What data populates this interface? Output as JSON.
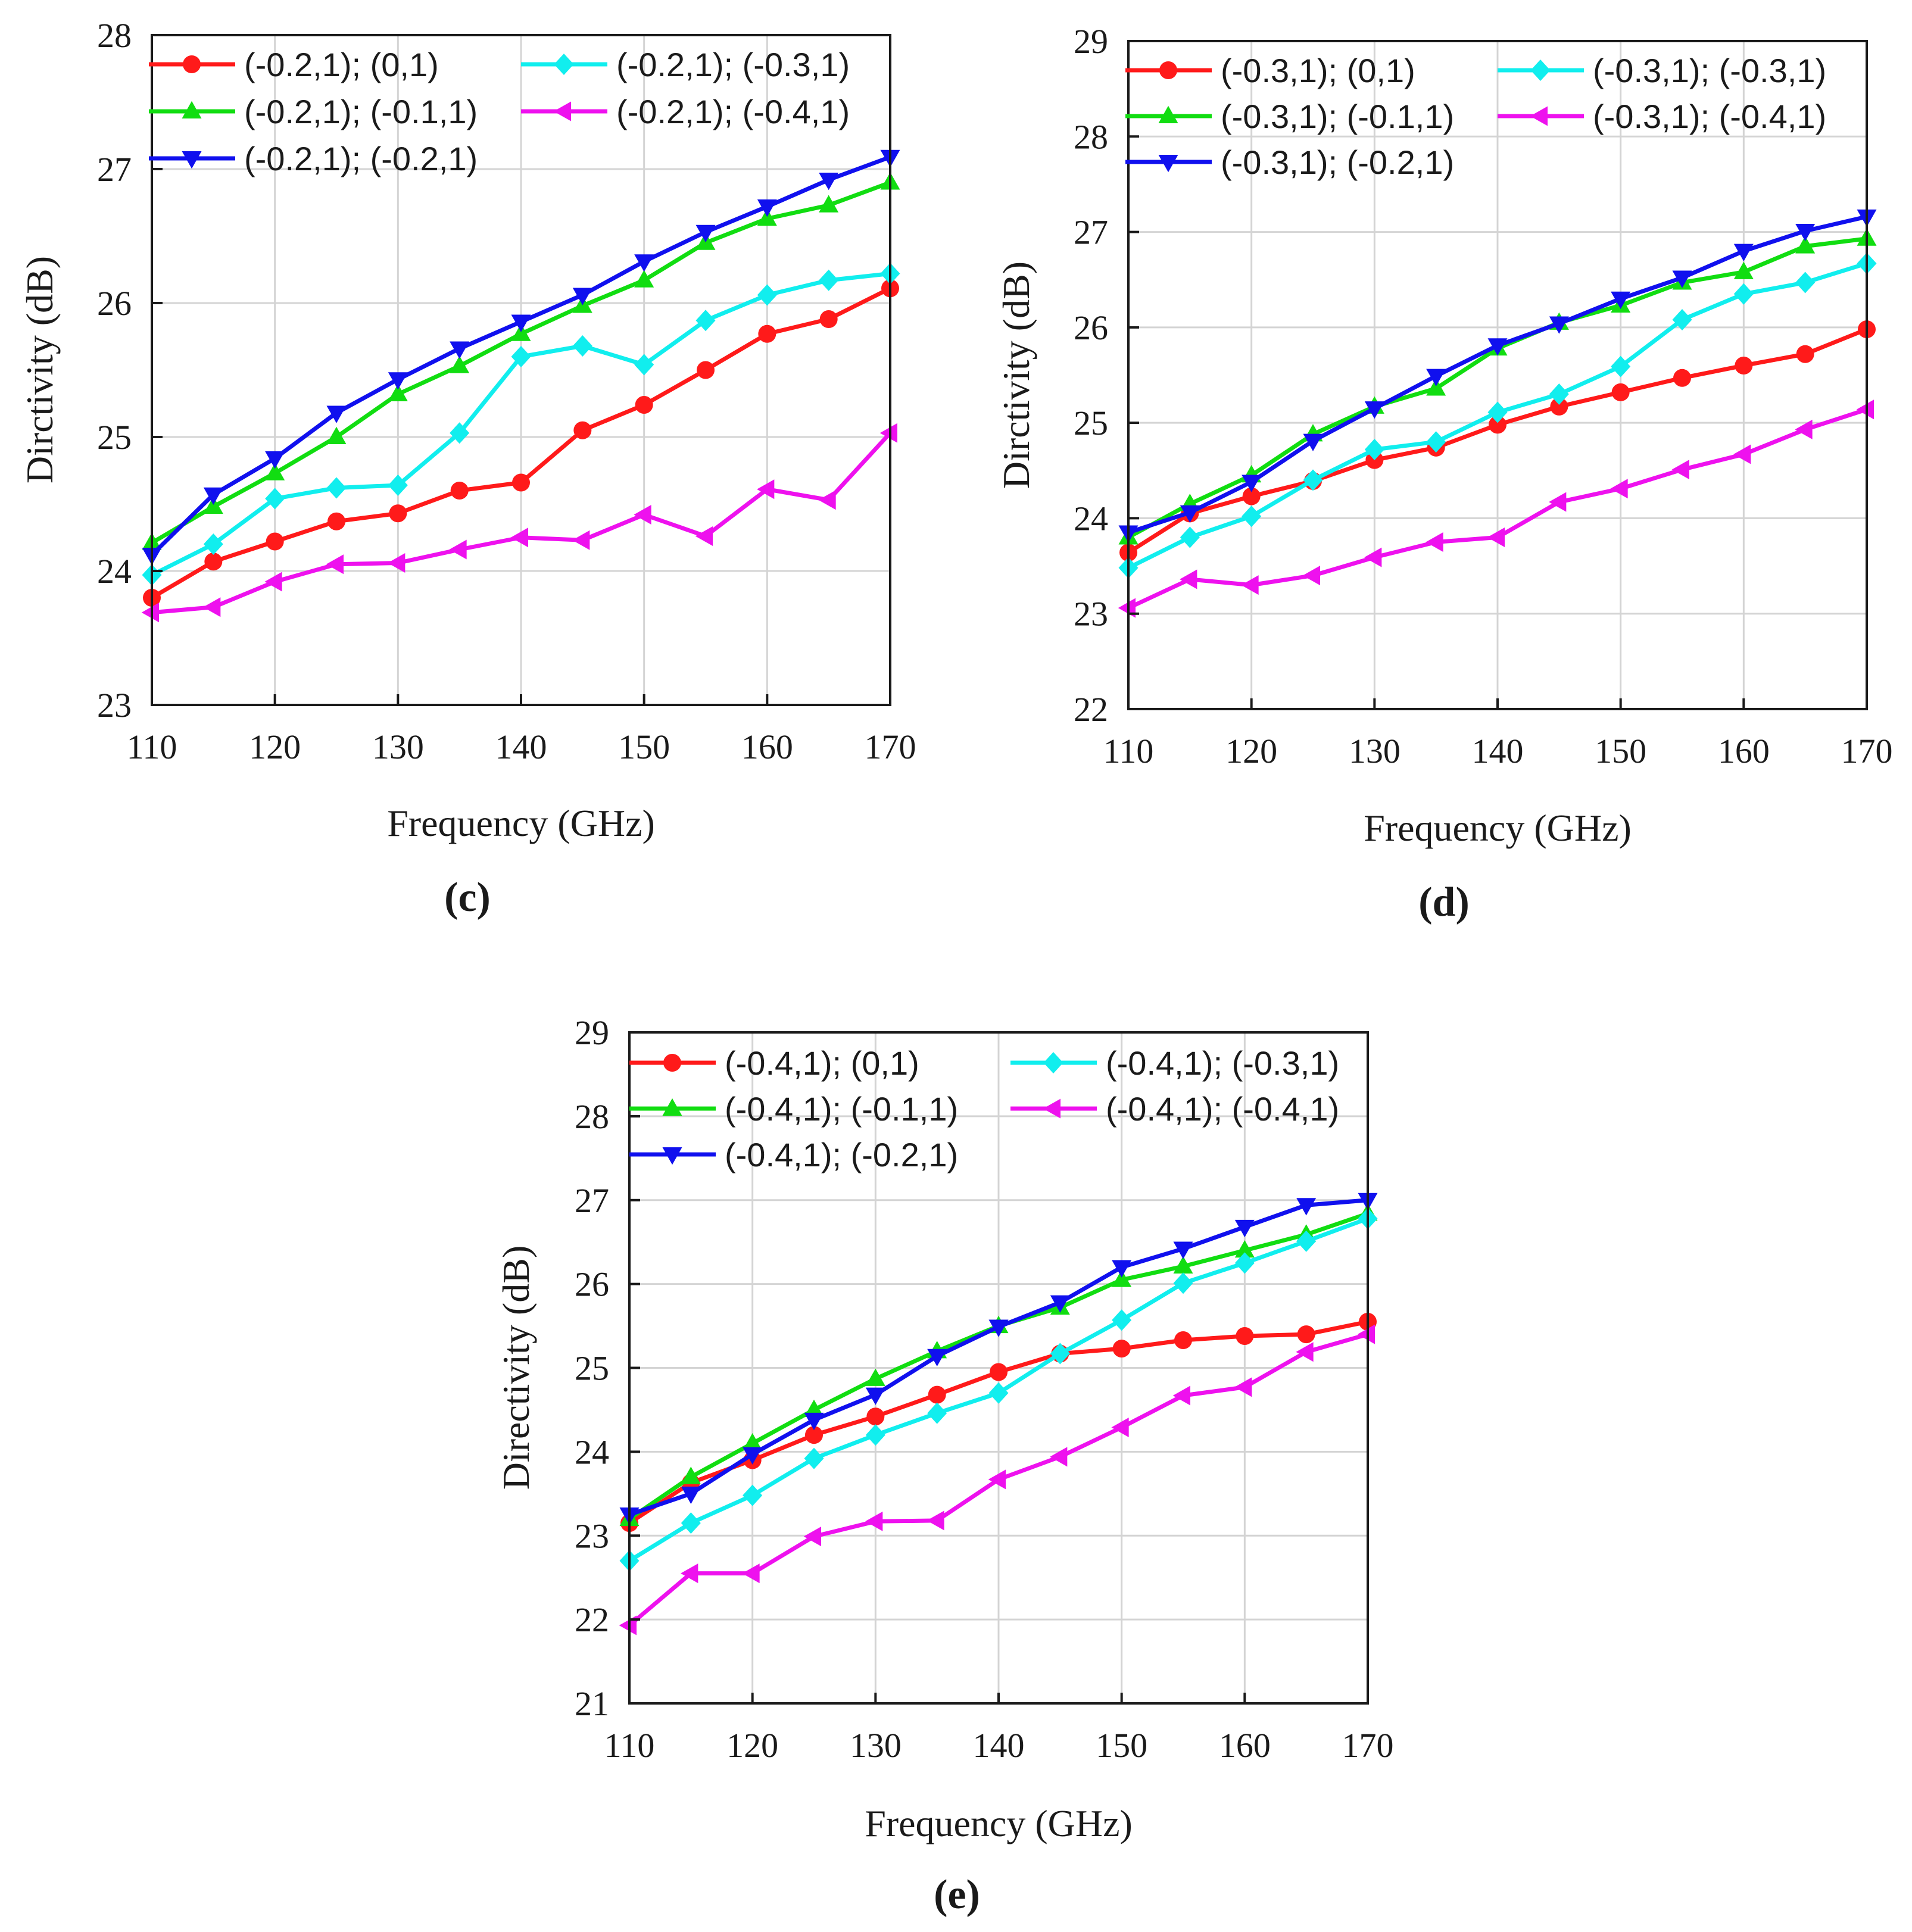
{
  "chart_data": [
    {
      "type": "line",
      "panel_label": "(c)",
      "xlabel": "Frequency (GHz)",
      "ylabel": "Dirctivity (dB)",
      "xlim": [
        110,
        170
      ],
      "ylim": [
        23,
        28
      ],
      "xticks": [
        110,
        120,
        130,
        140,
        150,
        160,
        170
      ],
      "yticks": [
        23,
        24,
        25,
        26,
        27,
        28
      ],
      "grid": true,
      "legend_position": "top-left",
      "x": [
        110,
        115,
        120,
        125,
        130,
        135,
        140,
        145,
        150,
        155,
        160,
        165,
        170
      ],
      "series": [
        {
          "name": "(-0.2,1); (0,1)",
          "color": "#ff1a1a",
          "marker": "circle",
          "values": [
            23.8,
            24.07,
            24.22,
            24.37,
            24.43,
            24.6,
            24.66,
            25.05,
            25.24,
            25.5,
            25.77,
            25.88,
            26.11
          ]
        },
        {
          "name": "(-0.2,1); (-0.1,1)",
          "color": "#11dd11",
          "marker": "triangle-up",
          "values": [
            24.21,
            24.48,
            24.73,
            25.0,
            25.32,
            25.53,
            25.77,
            25.98,
            26.17,
            26.45,
            26.63,
            26.73,
            26.9
          ]
        },
        {
          "name": "(-0.2,1); (-0.2,1)",
          "color": "#1010ee",
          "marker": "triangle-down",
          "values": [
            24.12,
            24.57,
            24.84,
            25.18,
            25.43,
            25.66,
            25.86,
            26.06,
            26.31,
            26.53,
            26.72,
            26.92,
            27.09
          ]
        },
        {
          "name": "(-0.2,1); (-0.3,1)",
          "color": "#11eeee",
          "marker": "diamond",
          "values": [
            23.97,
            24.2,
            24.54,
            24.62,
            24.64,
            25.03,
            25.6,
            25.68,
            25.54,
            25.87,
            26.06,
            26.17,
            26.22
          ]
        },
        {
          "name": "(-0.2,1); (-0.4,1)",
          "color": "#ee11ee",
          "marker": "triangle-left",
          "values": [
            23.69,
            23.73,
            23.92,
            24.05,
            24.06,
            24.16,
            24.25,
            24.23,
            24.42,
            24.26,
            24.61,
            24.53,
            25.03
          ]
        }
      ]
    },
    {
      "type": "line",
      "panel_label": "(d)",
      "xlabel": "Frequency (GHz)",
      "ylabel": "Dirctivity (dB)",
      "xlim": [
        110,
        170
      ],
      "ylim": [
        22,
        29
      ],
      "xticks": [
        110,
        120,
        130,
        140,
        150,
        160,
        170
      ],
      "yticks": [
        22,
        23,
        24,
        25,
        26,
        27,
        28,
        29
      ],
      "grid": true,
      "legend_position": "top-left",
      "x": [
        110,
        115,
        120,
        125,
        130,
        135,
        140,
        145,
        150,
        155,
        160,
        165,
        170
      ],
      "series": [
        {
          "name": "(-0.3,1); (0,1)",
          "color": "#ff1a1a",
          "marker": "circle",
          "values": [
            23.64,
            24.05,
            24.23,
            24.39,
            24.61,
            24.74,
            24.98,
            25.17,
            25.32,
            25.47,
            25.6,
            25.72,
            25.98
          ]
        },
        {
          "name": "(-0.3,1); (-0.1,1)",
          "color": "#11dd11",
          "marker": "triangle-up",
          "values": [
            23.8,
            24.15,
            24.45,
            24.88,
            25.17,
            25.36,
            25.78,
            26.05,
            26.23,
            26.47,
            26.58,
            26.85,
            26.93
          ]
        },
        {
          "name": "(-0.3,1); (-0.2,1)",
          "color": "#1010ee",
          "marker": "triangle-down",
          "values": [
            23.85,
            24.06,
            24.38,
            24.81,
            25.15,
            25.49,
            25.81,
            26.04,
            26.3,
            26.52,
            26.8,
            27.01,
            27.16
          ]
        },
        {
          "name": "(-0.3,1); (-0.3,1)",
          "color": "#11eeee",
          "marker": "diamond",
          "values": [
            23.48,
            23.8,
            24.02,
            24.4,
            24.72,
            24.8,
            25.11,
            25.3,
            25.59,
            26.08,
            26.35,
            26.47,
            26.67
          ]
        },
        {
          "name": "(-0.3,1); (-0.4,1)",
          "color": "#ee11ee",
          "marker": "triangle-left",
          "values": [
            23.06,
            23.36,
            23.3,
            23.4,
            23.59,
            23.75,
            23.8,
            24.17,
            24.31,
            24.51,
            24.67,
            24.93,
            25.14
          ]
        }
      ]
    },
    {
      "type": "line",
      "panel_label": "(e)",
      "xlabel": "Frequency (GHz)",
      "ylabel": "Directivity (dB)",
      "xlim": [
        110,
        170
      ],
      "ylim": [
        21,
        29
      ],
      "xticks": [
        110,
        120,
        130,
        140,
        150,
        160,
        170
      ],
      "yticks": [
        21,
        22,
        23,
        24,
        25,
        26,
        27,
        28,
        29
      ],
      "grid": true,
      "legend_position": "top-left",
      "x": [
        110,
        115,
        120,
        125,
        130,
        135,
        140,
        145,
        150,
        155,
        160,
        165,
        170
      ],
      "series": [
        {
          "name": "(-0.4,1); (0,1)",
          "color": "#ff1a1a",
          "marker": "circle",
          "values": [
            23.15,
            23.63,
            23.9,
            24.2,
            24.42,
            24.68,
            24.95,
            25.17,
            25.23,
            25.33,
            25.38,
            25.4,
            25.55
          ]
        },
        {
          "name": "(-0.4,1); (-0.1,1)",
          "color": "#11dd11",
          "marker": "triangle-up",
          "values": [
            23.2,
            23.7,
            24.1,
            24.5,
            24.87,
            25.2,
            25.5,
            25.72,
            26.05,
            26.21,
            26.4,
            26.59,
            26.84
          ]
        },
        {
          "name": "(-0.4,1); (-0.2,1)",
          "color": "#1010ee",
          "marker": "triangle-down",
          "values": [
            23.25,
            23.5,
            23.97,
            24.38,
            24.68,
            25.14,
            25.49,
            25.78,
            26.2,
            26.42,
            26.68,
            26.94,
            27.0
          ]
        },
        {
          "name": "(-0.4,1); (-0.3,1)",
          "color": "#11eeee",
          "marker": "diamond",
          "values": [
            22.7,
            23.15,
            23.48,
            23.92,
            24.2,
            24.46,
            24.7,
            25.17,
            25.57,
            26.01,
            26.25,
            26.51,
            26.78
          ]
        },
        {
          "name": "(-0.4,1); (-0.4,1)",
          "color": "#ee11ee",
          "marker": "triangle-left",
          "values": [
            21.93,
            22.55,
            22.55,
            22.99,
            23.17,
            23.18,
            23.67,
            23.94,
            24.29,
            24.67,
            24.77,
            25.19,
            25.4
          ]
        }
      ]
    }
  ]
}
